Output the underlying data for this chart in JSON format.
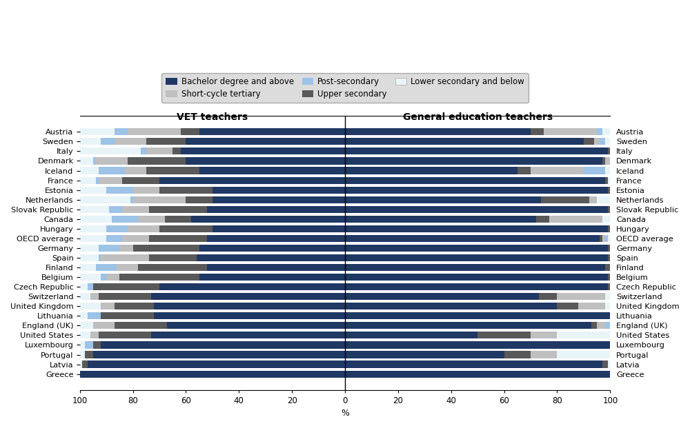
{
  "countries": [
    "Austria",
    "Sweden",
    "Italy",
    "Denmark",
    "Iceland",
    "France",
    "Estonia",
    "Netherlands",
    "Slovak Republic",
    "Canada",
    "Hungary",
    "OECD average",
    "Germany",
    "Spain",
    "Finland",
    "Belgium",
    "Czech Republic",
    "Switzerland",
    "United Kingdom",
    "Lithuania",
    "England (UK)",
    "United States",
    "Luxembourg",
    "Portugal",
    "Latvia",
    "Greece"
  ],
  "colors": {
    "bachelor": "#1F3864",
    "post_secondary": "#9DC3E6",
    "short_cycle": "#BFBFBF",
    "upper_secondary": "#595959",
    "lower_secondary": "#E8F4F8"
  },
  "vet_bachelor": [
    55,
    60,
    62,
    60,
    55,
    70,
    50,
    50,
    52,
    58,
    50,
    52,
    55,
    56,
    52,
    55,
    70,
    73,
    72,
    72,
    67,
    73,
    92,
    95,
    97,
    100
  ],
  "vet_post_secondary": [
    5,
    5,
    2,
    1,
    10,
    1,
    10,
    1,
    5,
    10,
    8,
    6,
    8,
    1,
    8,
    2,
    2,
    0,
    0,
    5,
    0,
    0,
    3,
    0,
    0,
    0
  ],
  "vet_short_cycle": [
    20,
    12,
    10,
    12,
    8,
    9,
    10,
    20,
    10,
    10,
    12,
    10,
    5,
    18,
    8,
    5,
    0,
    3,
    5,
    0,
    8,
    3,
    0,
    0,
    0,
    0
  ],
  "vet_upper_secondary": [
    7,
    15,
    3,
    22,
    20,
    14,
    20,
    10,
    22,
    10,
    20,
    22,
    25,
    18,
    26,
    30,
    25,
    20,
    15,
    20,
    20,
    20,
    3,
    3,
    2,
    0
  ],
  "vet_lower_secondary": [
    13,
    8,
    23,
    5,
    7,
    6,
    10,
    19,
    11,
    12,
    10,
    10,
    7,
    7,
    6,
    8,
    3,
    4,
    8,
    3,
    5,
    4,
    2,
    2,
    1,
    0
  ],
  "gen_bachelor": [
    70,
    90,
    99,
    97,
    65,
    98,
    99,
    74,
    99,
    72,
    99,
    96,
    99,
    99,
    98,
    99,
    99,
    73,
    80,
    100,
    93,
    50,
    100,
    60,
    97,
    100
  ],
  "gen_post_secondary": [
    2,
    2,
    0,
    0,
    8,
    0,
    0,
    0,
    0,
    0,
    0,
    1,
    0,
    0,
    0,
    0,
    0,
    0,
    0,
    0,
    2,
    0,
    0,
    0,
    0,
    0
  ],
  "gen_short_cycle": [
    20,
    2,
    0,
    2,
    20,
    0,
    0,
    3,
    0,
    20,
    0,
    1,
    0,
    0,
    0,
    0,
    0,
    18,
    10,
    0,
    3,
    10,
    0,
    10,
    0,
    0
  ],
  "gen_upper_secondary": [
    5,
    4,
    1,
    1,
    5,
    1,
    1,
    18,
    1,
    5,
    1,
    1,
    1,
    1,
    2,
    1,
    1,
    7,
    8,
    0,
    2,
    20,
    0,
    10,
    2,
    0
  ],
  "gen_lower_secondary": [
    3,
    2,
    0,
    0,
    2,
    1,
    0,
    5,
    0,
    3,
    0,
    1,
    0,
    0,
    0,
    0,
    0,
    2,
    2,
    0,
    0,
    20,
    0,
    20,
    1,
    0
  ],
  "title_left": "VET teachers",
  "title_right": "General education teachers",
  "xlabel": "%",
  "xlim": 100,
  "bar_height": 0.72
}
